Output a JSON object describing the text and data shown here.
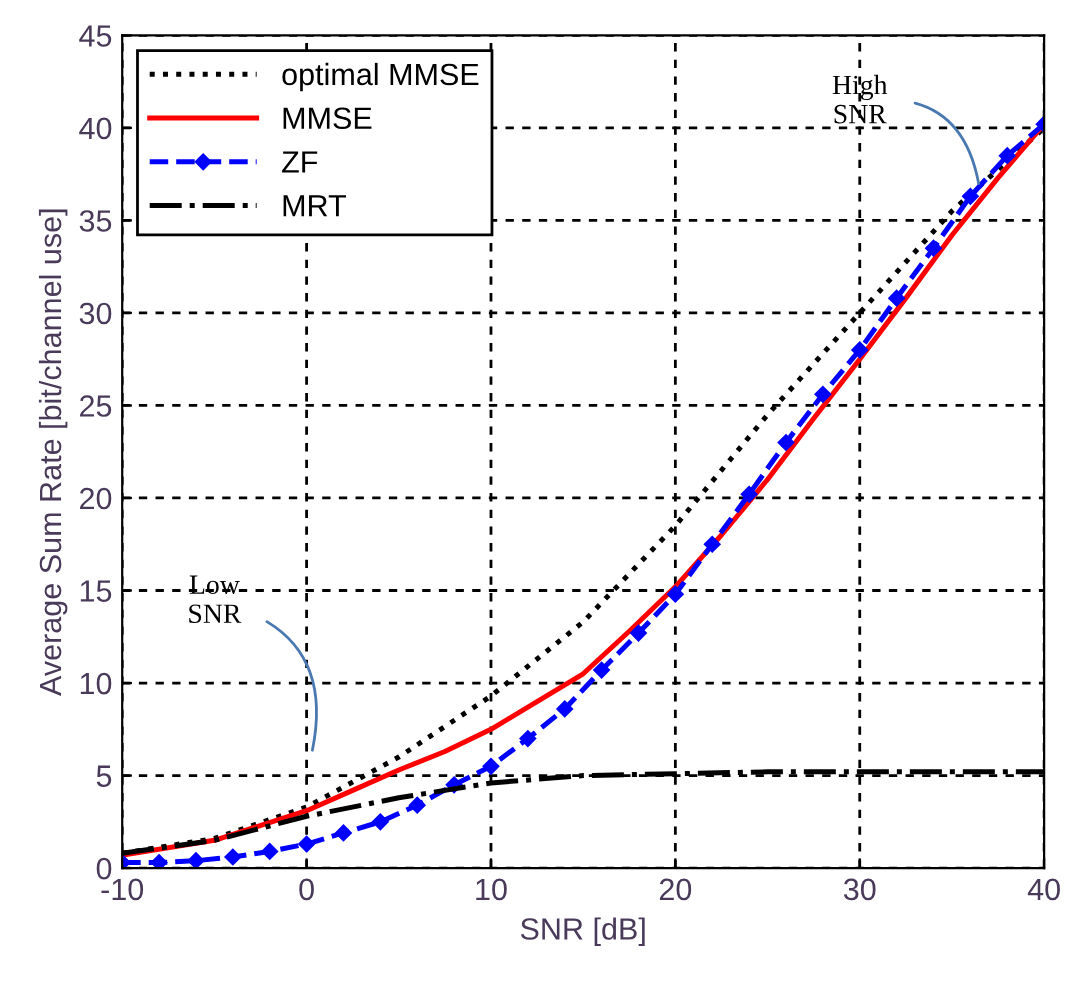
{
  "chart_data": {
    "type": "line",
    "xlabel": "SNR [dB]",
    "ylabel": "Average Sum Rate [bit/channel use]",
    "xlim": [
      -10,
      40
    ],
    "ylim": [
      0,
      45
    ],
    "xticks": [
      -10,
      0,
      10,
      20,
      30,
      40
    ],
    "yticks": [
      0,
      5,
      10,
      15,
      20,
      25,
      30,
      35,
      40,
      45
    ],
    "grid": true,
    "legend": "top left",
    "series": [
      {
        "name": "optimal MMSE",
        "color": "#000000",
        "line_style": "dotted",
        "marker": "none",
        "x": [
          -10,
          -5,
          0,
          5,
          10,
          15,
          20,
          25,
          30,
          35,
          40
        ],
        "values": [
          0.8,
          1.6,
          3.3,
          6.0,
          9.3,
          13.3,
          18.5,
          24.5,
          30,
          35.5,
          40
        ]
      },
      {
        "name": "MMSE",
        "color": "#ff0000",
        "line_style": "solid",
        "marker": "none",
        "x": [
          -10,
          -5,
          0,
          2.5,
          5,
          7.5,
          10,
          12.5,
          15,
          17.5,
          20,
          22.5,
          25,
          27.5,
          30,
          32.5,
          35,
          37.5,
          40
        ],
        "values": [
          0.7,
          1.5,
          3.1,
          4.2,
          5.3,
          6.3,
          7.5,
          9,
          10.5,
          12.8,
          15.2,
          18,
          21,
          24.3,
          27.5,
          30.8,
          34.2,
          37.3,
          40.2
        ]
      },
      {
        "name": "ZF",
        "color": "#0000ff",
        "line_style": "dashed",
        "marker": "diamond",
        "x": [
          -10,
          -8,
          -6,
          -4,
          -2,
          0,
          2,
          4,
          6,
          8,
          10,
          12,
          14,
          16,
          18,
          20,
          22,
          24,
          26,
          28,
          30,
          32,
          34,
          36,
          38,
          40
        ],
        "values": [
          0.3,
          0.3,
          0.4,
          0.6,
          0.9,
          1.3,
          1.9,
          2.5,
          3.4,
          4.5,
          5.5,
          7.0,
          8.6,
          10.7,
          12.7,
          14.8,
          17.5,
          20.2,
          23.0,
          25.6,
          28.0,
          30.8,
          33.5,
          36.3,
          38.5,
          40.2
        ]
      },
      {
        "name": "MRT",
        "color": "#000000",
        "line_style": "dashdot",
        "marker": "none",
        "x": [
          -10,
          -5,
          0,
          5,
          10,
          15,
          20,
          25,
          30,
          35,
          40
        ],
        "values": [
          0.8,
          1.5,
          2.8,
          3.8,
          4.6,
          5.0,
          5.1,
          5.2,
          5.2,
          5.2,
          5.2
        ]
      }
    ],
    "annotations": [
      {
        "text": "High\nSNR",
        "x": 36.5,
        "y": 36.7
      },
      "Low\nSNR"
    ]
  }
}
